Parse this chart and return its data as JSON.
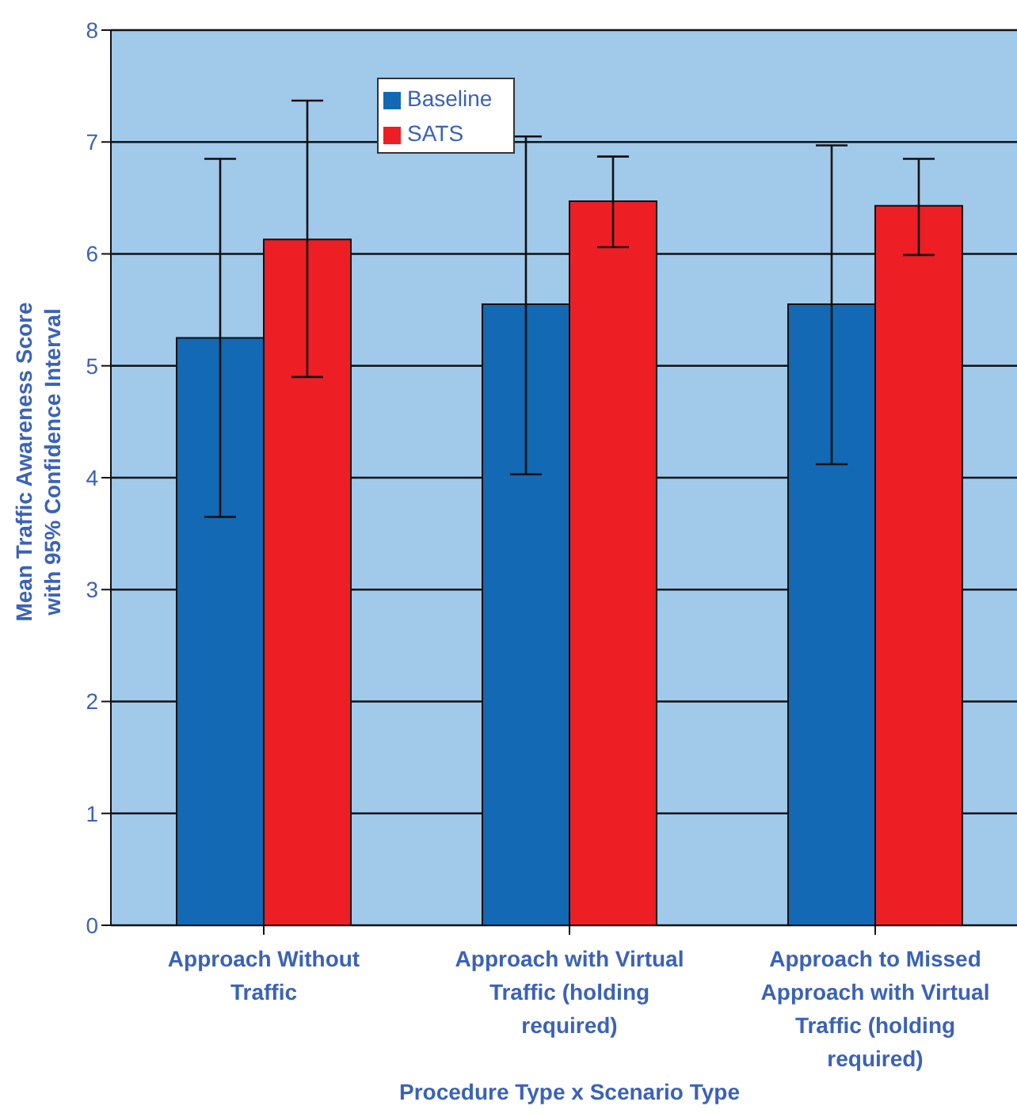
{
  "chart_data": {
    "type": "bar",
    "xlabel": "Procedure Type x Scenario Type",
    "ylabel": "Mean Traffic Awareness Score\nwith 95%  Confidence Interval",
    "categories": [
      "Approach Without Traffic",
      "Approach  with Virtual Traffic (holding required)",
      "Approach to Missed Approach with  Virtual Traffic (holding required)"
    ],
    "series": [
      {
        "name": "Baseline",
        "color": "#1369b4",
        "values": [
          5.25,
          5.55,
          5.55
        ],
        "errors": [
          [
            3.65,
            6.85
          ],
          [
            4.03,
            7.05
          ],
          [
            4.12,
            6.97
          ]
        ]
      },
      {
        "name": "SATS",
        "color": "#ee1f24",
        "values": [
          6.13,
          6.47,
          6.43
        ],
        "errors": [
          [
            4.9,
            7.37
          ],
          [
            6.06,
            6.87
          ],
          [
            5.99,
            6.85
          ]
        ]
      }
    ],
    "ylim": [
      0,
      8
    ],
    "yticks": [
      0,
      1,
      2,
      3,
      4,
      5,
      6,
      7,
      8
    ],
    "grid": "y",
    "legend": "top"
  }
}
